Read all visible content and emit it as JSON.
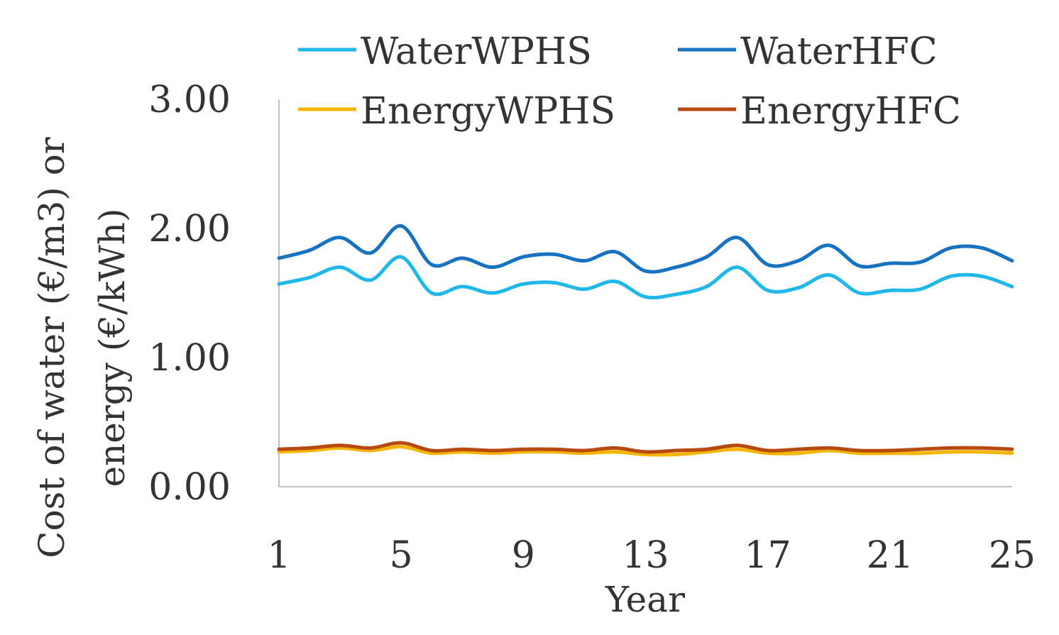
{
  "chart_data": {
    "type": "line",
    "title": "",
    "xlabel": "Year",
    "ylabel_lines": [
      "Cost of water (€/m3) or",
      "energy (€/kWh)"
    ],
    "x": [
      1,
      2,
      3,
      4,
      5,
      6,
      7,
      8,
      9,
      10,
      11,
      12,
      13,
      14,
      15,
      16,
      17,
      18,
      19,
      20,
      21,
      22,
      23,
      24,
      25
    ],
    "x_tick_labels": [
      "1",
      "5",
      "9",
      "13",
      "17",
      "21",
      "25"
    ],
    "y_tick_labels": [
      "0.00",
      "1.00",
      "2.00",
      "3.00"
    ],
    "ylim": [
      0,
      3
    ],
    "legend_position": "top",
    "series": [
      {
        "name": "WaterWPHS",
        "color": "#1fb8e8",
        "values": [
          1.57,
          1.62,
          1.7,
          1.6,
          1.78,
          1.5,
          1.55,
          1.5,
          1.57,
          1.58,
          1.53,
          1.59,
          1.47,
          1.49,
          1.55,
          1.7,
          1.52,
          1.54,
          1.64,
          1.5,
          1.52,
          1.53,
          1.63,
          1.63,
          1.55
        ]
      },
      {
        "name": "WaterHFC",
        "color": "#1773c2",
        "values": [
          1.77,
          1.83,
          1.93,
          1.81,
          2.02,
          1.72,
          1.77,
          1.7,
          1.78,
          1.8,
          1.75,
          1.82,
          1.67,
          1.7,
          1.78,
          1.93,
          1.72,
          1.75,
          1.87,
          1.71,
          1.73,
          1.74,
          1.85,
          1.85,
          1.75
        ]
      },
      {
        "name": "EnergyWPHS",
        "color": "#f5b400",
        "values": [
          0.27,
          0.28,
          0.3,
          0.28,
          0.31,
          0.26,
          0.27,
          0.26,
          0.27,
          0.27,
          0.26,
          0.27,
          0.25,
          0.25,
          0.27,
          0.29,
          0.26,
          0.26,
          0.28,
          0.26,
          0.26,
          0.26,
          0.27,
          0.27,
          0.26
        ]
      },
      {
        "name": "EnergyHFC",
        "color": "#b84a10",
        "values": [
          0.29,
          0.3,
          0.32,
          0.3,
          0.34,
          0.28,
          0.29,
          0.28,
          0.29,
          0.29,
          0.28,
          0.3,
          0.27,
          0.28,
          0.29,
          0.32,
          0.28,
          0.29,
          0.3,
          0.28,
          0.28,
          0.29,
          0.3,
          0.3,
          0.29
        ]
      }
    ]
  }
}
